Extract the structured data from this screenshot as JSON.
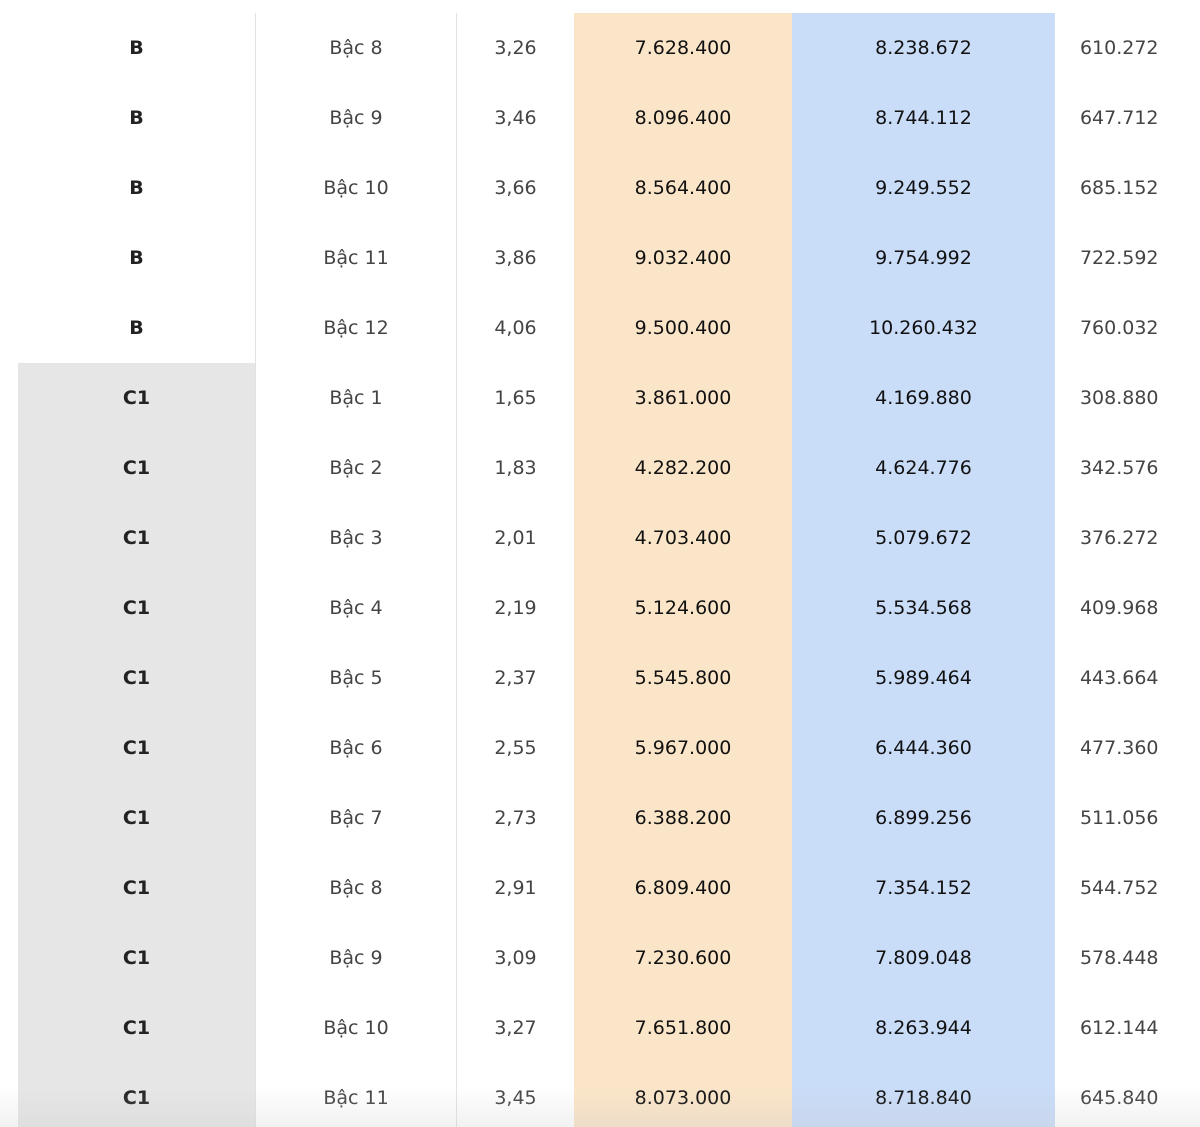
{
  "table": {
    "rows": [
      [
        "B",
        "Bậc 8",
        "3,26",
        "7.628.400",
        "8.238.672",
        "610.272"
      ],
      [
        "B",
        "Bậc 9",
        "3,46",
        "8.096.400",
        "8.744.112",
        "647.712"
      ],
      [
        "B",
        "Bậc 10",
        "3,66",
        "8.564.400",
        "9.249.552",
        "685.152"
      ],
      [
        "B",
        "Bậc 11",
        "3,86",
        "9.032.400",
        "9.754.992",
        "722.592"
      ],
      [
        "B",
        "Bậc 12",
        "4,06",
        "9.500.400",
        "10.260.432",
        "760.032"
      ],
      [
        "C1",
        "Bậc 1",
        "1,65",
        "3.861.000",
        "4.169.880",
        "308.880"
      ],
      [
        "C1",
        "Bậc 2",
        "1,83",
        "4.282.200",
        "4.624.776",
        "342.576"
      ],
      [
        "C1",
        "Bậc 3",
        "2,01",
        "4.703.400",
        "5.079.672",
        "376.272"
      ],
      [
        "C1",
        "Bậc 4",
        "2,19",
        "5.124.600",
        "5.534.568",
        "409.968"
      ],
      [
        "C1",
        "Bậc 5",
        "2,37",
        "5.545.800",
        "5.989.464",
        "443.664"
      ],
      [
        "C1",
        "Bậc 6",
        "2,55",
        "5.967.000",
        "6.444.360",
        "477.360"
      ],
      [
        "C1",
        "Bậc 7",
        "2,73",
        "6.388.200",
        "6.899.256",
        "511.056"
      ],
      [
        "C1",
        "Bậc 8",
        "2,91",
        "6.809.400",
        "7.354.152",
        "544.752"
      ],
      [
        "C1",
        "Bậc 9",
        "3,09",
        "7.230.600",
        "7.809.048",
        "578.448"
      ],
      [
        "C1",
        "Bậc 10",
        "3,27",
        "7.651.800",
        "8.263.944",
        "612.144"
      ],
      [
        "C1",
        "Bậc 11",
        "3,45",
        "8.073.000",
        "8.718.840",
        "645.840"
      ]
    ]
  }
}
